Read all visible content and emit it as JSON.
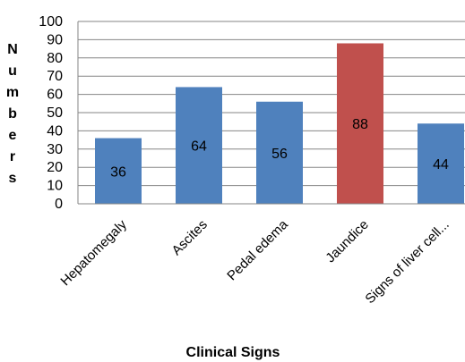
{
  "chart_data": {
    "type": "bar",
    "categories": [
      "Hepatomegaly",
      "Ascites",
      "Pedal edema",
      "Jaundice",
      "Signs of liver cell..."
    ],
    "values": [
      36,
      64,
      56,
      88,
      44
    ],
    "data_labels": [
      "36",
      "64",
      "56",
      "88",
      "44"
    ],
    "title": "",
    "xlabel": "Clinical Signs",
    "ylabel": "Numbers",
    "ylim": [
      0,
      100
    ],
    "yticks": [
      0,
      10,
      20,
      30,
      40,
      50,
      60,
      70,
      80,
      90,
      100
    ],
    "ytick_labels": [
      "0",
      "10",
      "20",
      "30",
      "40",
      "50",
      "60",
      "70",
      "80",
      "90",
      "100"
    ],
    "grid": true,
    "legend": "none",
    "colors": {
      "default_bar": "#4F81BD",
      "highlight_bar": "#C0504D",
      "gridline": "#868686",
      "axis": "#868686"
    },
    "highlight_index": 3
  }
}
